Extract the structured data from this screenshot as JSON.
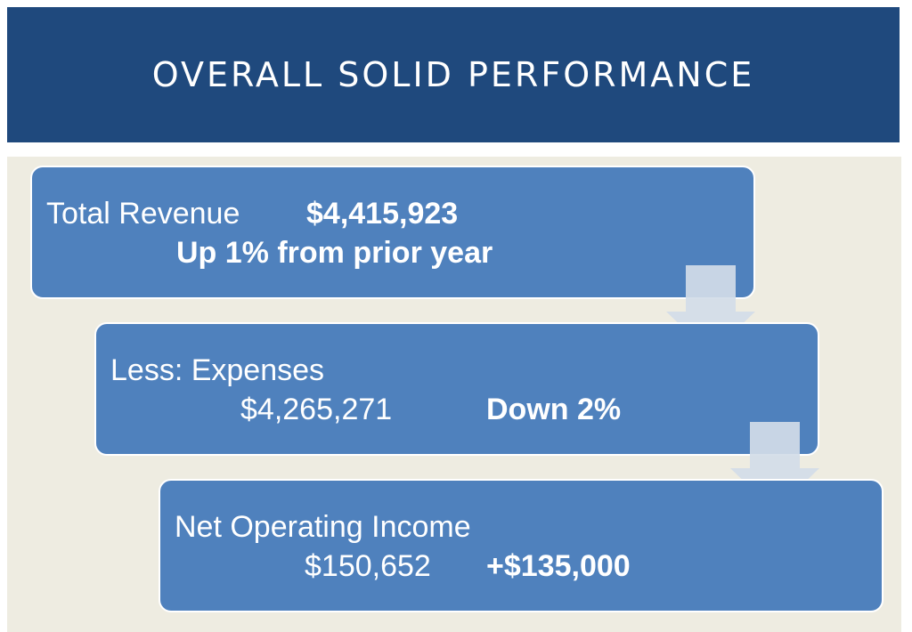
{
  "title": "OVERALL SOLID PERFORMANCE",
  "steps": [
    {
      "label": "Total Revenue",
      "value": "$4,415,923",
      "change": "Up 1% from prior year"
    },
    {
      "label": "Less: Expenses",
      "value": "$4,265,271",
      "change": "Down 2%"
    },
    {
      "label": "Net Operating Income",
      "value": "$150,652",
      "change": "+$135,000"
    }
  ],
  "colors": {
    "title_background": "#1f497d",
    "body_background": "#eeece1",
    "box_fill": "#4f81bd",
    "arrow_fill": "#d3dce8"
  },
  "icons": [
    "down-arrow-icon",
    "down-arrow-icon"
  ]
}
